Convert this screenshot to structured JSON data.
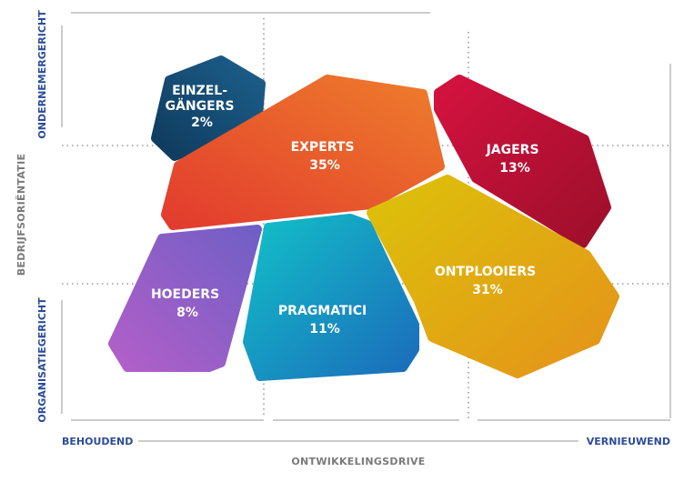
{
  "colors": {
    "axis_end_text": "#2b4c9a",
    "axis_title_text": "#7a7a7a",
    "grid_line": "#9a9a9a"
  },
  "axes": {
    "x": {
      "left": "BEHOUDEND",
      "right": "VERNIEUWEND",
      "title": "ONTWIKKELINGSDRIVE"
    },
    "y": {
      "top": "ONDERNEMERGERICHT",
      "bottom": "ORGANISATIEGERICHT",
      "title": "BEDRIJFSORIËNTATIE"
    }
  },
  "segments": [
    {
      "id": "einzelgangers",
      "lines": [
        "EINZEL-",
        "GÄNGERS"
      ],
      "value": "2%",
      "colors": [
        "#0f3a5c",
        "#1c5f8c"
      ]
    },
    {
      "id": "experts",
      "lines": [
        "EXPERTS"
      ],
      "value": "35%",
      "colors": [
        "#e23b2e",
        "#ee7d2b"
      ]
    },
    {
      "id": "jagers",
      "lines": [
        "JAGERS"
      ],
      "value": "13%",
      "colors": [
        "#d4123f",
        "#9c0f2a"
      ]
    },
    {
      "id": "hoeders",
      "lines": [
        "HOEDERS"
      ],
      "value": "8%",
      "colors": [
        "#b35fc8",
        "#6f5fc6"
      ]
    },
    {
      "id": "pragmatici",
      "lines": [
        "PRAGMATICI"
      ],
      "value": "11%",
      "colors": [
        "#12c0c8",
        "#1b6bbb"
      ]
    },
    {
      "id": "ontplooiers",
      "lines": [
        "ONTPLOOIERS"
      ],
      "value": "31%",
      "colors": [
        "#dcc20a",
        "#e5921a"
      ]
    }
  ]
}
